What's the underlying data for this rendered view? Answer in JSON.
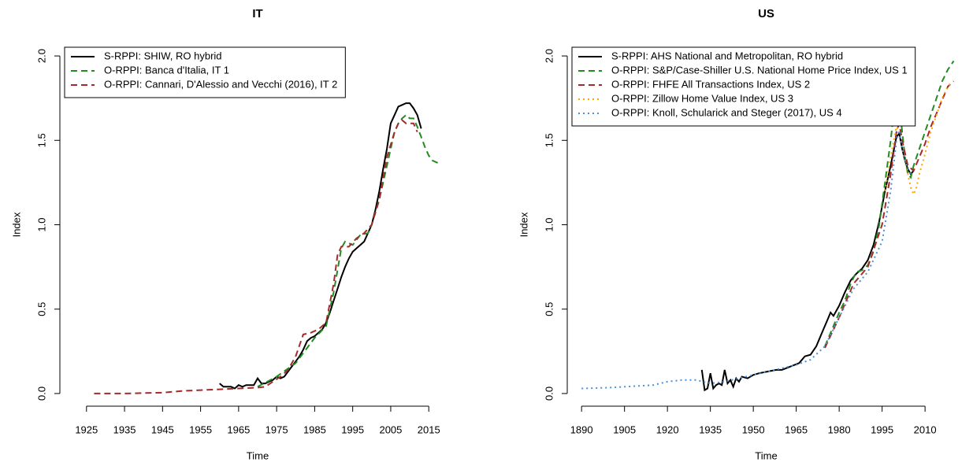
{
  "chart_data": [
    {
      "type": "line",
      "title": "IT",
      "xlabel": "Time",
      "ylabel": "Index",
      "xlim": [
        1918,
        2022
      ],
      "ylim": [
        -0.075,
        2.075
      ],
      "xticks": [
        1925,
        1935,
        1945,
        1955,
        1965,
        1975,
        1985,
        1995,
        2005,
        2015
      ],
      "yticks": [
        {
          "value": 0,
          "label": "0.0"
        },
        0.5,
        {
          "value": 1,
          "label": "1.0"
        },
        1.5,
        {
          "value": 2,
          "label": "2.0"
        }
      ],
      "legend": "topleft",
      "series": [
        {
          "name": "S-RPPI: SHIW, RO hybrid",
          "color": "#000000",
          "dash": "solid",
          "x": [
            1960,
            1961,
            1962,
            1963,
            1964,
            1965,
            1966,
            1967,
            1968,
            1969,
            1970,
            1971,
            1972,
            1973,
            1974,
            1975,
            1976,
            1977,
            1978,
            1979,
            1980,
            1981,
            1982,
            1983,
            1984,
            1985,
            1986,
            1987,
            1988,
            1989,
            1990,
            1991,
            1992,
            1993,
            1994,
            1995,
            1996,
            1997,
            1998,
            1999,
            2000,
            2001,
            2002,
            2003,
            2004,
            2005,
            2006,
            2007,
            2008,
            2009,
            2010,
            2011,
            2012,
            2013
          ],
          "values": [
            0.06,
            0.04,
            0.04,
            0.04,
            0.03,
            0.05,
            0.04,
            0.05,
            0.05,
            0.05,
            0.09,
            0.06,
            0.06,
            0.07,
            0.08,
            0.1,
            0.09,
            0.1,
            0.13,
            0.16,
            0.19,
            0.22,
            0.26,
            0.31,
            0.33,
            0.34,
            0.36,
            0.38,
            0.42,
            0.48,
            0.55,
            0.62,
            0.69,
            0.75,
            0.8,
            0.84,
            0.86,
            0.88,
            0.9,
            0.95,
            1.0,
            1.09,
            1.2,
            1.33,
            1.45,
            1.6,
            1.65,
            1.7,
            1.71,
            1.72,
            1.72,
            1.69,
            1.65,
            1.57
          ]
        },
        {
          "name": "O-RPPI: Banca d'Italia, IT 1",
          "color": "#228b22",
          "dash": "dashed",
          "x": [
            1970,
            1975,
            1980,
            1985,
            1988,
            1990,
            1992,
            1993,
            1995,
            1997,
            1999,
            2000,
            2002,
            2004,
            2005,
            2006,
            2007,
            2008,
            2009,
            2010,
            2011,
            2012,
            2013,
            2014,
            2015,
            2016,
            2017,
            2018
          ],
          "values": [
            0.04,
            0.1,
            0.18,
            0.33,
            0.4,
            0.6,
            0.86,
            0.9,
            0.88,
            0.94,
            0.95,
            1.0,
            1.15,
            1.35,
            1.45,
            1.55,
            1.6,
            1.63,
            1.65,
            1.63,
            1.63,
            1.58,
            1.52,
            1.46,
            1.41,
            1.38,
            1.37,
            1.36
          ]
        },
        {
          "name": "O-RPPI: Cannari, D'Alessio and Vecchi (2016), IT 2",
          "color": "#a52a2a",
          "dash": "dashed",
          "x": [
            1927,
            1935,
            1945,
            1950,
            1955,
            1960,
            1965,
            1970,
            1972,
            1974,
            1976,
            1978,
            1980,
            1982,
            1984,
            1986,
            1988,
            1990,
            1991,
            1992,
            1994,
            1996,
            1998,
            2000,
            2002,
            2004,
            2006,
            2007,
            2008,
            2009,
            2010,
            2011,
            2012
          ],
          "values": [
            0.0,
            0.0,
            0.005,
            0.015,
            0.02,
            0.025,
            0.03,
            0.035,
            0.04,
            0.07,
            0.1,
            0.14,
            0.22,
            0.35,
            0.36,
            0.38,
            0.42,
            0.65,
            0.82,
            0.87,
            0.87,
            0.92,
            0.95,
            1.0,
            1.15,
            1.4,
            1.55,
            1.6,
            1.62,
            1.6,
            1.6,
            1.6,
            1.55
          ]
        }
      ]
    },
    {
      "type": "line",
      "title": "US",
      "xlabel": "Time",
      "ylabel": "Index",
      "xlim": [
        1885,
        2024
      ],
      "ylim": [
        -0.075,
        2.075
      ],
      "xticks": [
        1890,
        1905,
        1920,
        1935,
        1950,
        1965,
        1980,
        1995,
        2010
      ],
      "yticks": [
        {
          "value": 0,
          "label": "0.0"
        },
        0.5,
        {
          "value": 1,
          "label": "1.0"
        },
        1.5,
        {
          "value": 2,
          "label": "2.0"
        }
      ],
      "legend": "topleft",
      "series": [
        {
          "name": "S-RPPI: AHS National and Metropolitan, RO hybrid",
          "color": "#000000",
          "dash": "solid",
          "x": [
            1932,
            1933,
            1934,
            1935,
            1936,
            1937,
            1938,
            1939,
            1940,
            1941,
            1942,
            1943,
            1944,
            1945,
            1946,
            1948,
            1950,
            1952,
            1955,
            1958,
            1960,
            1963,
            1966,
            1968,
            1970,
            1972,
            1974,
            1976,
            1977,
            1978,
            1980,
            1982,
            1984,
            1986,
            1988,
            1990,
            1992,
            1994,
            1996,
            1998,
            2000,
            2001,
            2002,
            2003,
            2004,
            2005,
            2006
          ],
          "values": [
            0.14,
            0.02,
            0.03,
            0.12,
            0.03,
            0.05,
            0.06,
            0.05,
            0.14,
            0.06,
            0.08,
            0.04,
            0.09,
            0.07,
            0.1,
            0.09,
            0.11,
            0.12,
            0.13,
            0.14,
            0.14,
            0.16,
            0.18,
            0.22,
            0.23,
            0.28,
            0.36,
            0.44,
            0.48,
            0.46,
            0.52,
            0.6,
            0.67,
            0.71,
            0.74,
            0.79,
            0.88,
            1.02,
            1.2,
            1.35,
            1.52,
            1.54,
            1.45,
            1.38,
            1.33,
            1.3,
            1.32
          ]
        },
        {
          "name": "O-RPPI: S&P/Case-Shiller U.S. National Home Price Index, US 1",
          "color": "#228b22",
          "dash": "dashed",
          "x": [
            1975,
            1978,
            1980,
            1982,
            1984,
            1986,
            1988,
            1990,
            1992,
            1994,
            1996,
            1998,
            1999,
            2000,
            2001,
            2002,
            2003,
            2004,
            2005,
            2006,
            2008,
            2010,
            2012,
            2014,
            2016,
            2018,
            2020
          ],
          "values": [
            0.28,
            0.4,
            0.48,
            0.55,
            0.65,
            0.72,
            0.73,
            0.76,
            0.84,
            1.0,
            1.25,
            1.5,
            1.65,
            1.76,
            1.73,
            1.55,
            1.4,
            1.3,
            1.28,
            1.35,
            1.45,
            1.55,
            1.65,
            1.75,
            1.85,
            1.92,
            1.97
          ]
        },
        {
          "name": "O-RPPI: FHFE All Transactions Index, US 2",
          "color": "#a52a2a",
          "dash": "dashed",
          "x": [
            1975,
            1980,
            1985,
            1990,
            1995,
            1998,
            2000,
            2001,
            2002,
            2004,
            2006,
            2008,
            2010,
            2012,
            2014,
            2016,
            2018,
            2020
          ],
          "values": [
            0.27,
            0.45,
            0.65,
            0.75,
            1.0,
            1.3,
            1.55,
            1.6,
            1.5,
            1.35,
            1.32,
            1.4,
            1.48,
            1.58,
            1.66,
            1.74,
            1.82,
            1.85
          ]
        },
        {
          "name": "O-RPPI: Zillow Home Value Index, US 3",
          "color": "#ffa500",
          "dash": "dotted",
          "x": [
            1996,
            1998,
            2000,
            2001,
            2002,
            2004,
            2005,
            2006,
            2007,
            2008,
            2010,
            2012,
            2014,
            2016,
            2018,
            2019
          ],
          "values": [
            1.2,
            1.4,
            1.58,
            1.55,
            1.45,
            1.3,
            1.22,
            1.18,
            1.22,
            1.3,
            1.42,
            1.55,
            1.65,
            1.75,
            1.82,
            1.84
          ]
        },
        {
          "name": "O-RPPI: Knoll, Schularick and Steger (2017), US 4",
          "color": "#4a90d9",
          "dash": "dotted",
          "x": [
            1890,
            1900,
            1905,
            1910,
            1915,
            1920,
            1925,
            1930,
            1935,
            1940,
            1945,
            1950,
            1955,
            1960,
            1965,
            1970,
            1975,
            1980,
            1985,
            1990,
            1995,
            1998,
            2000,
            2001,
            2002,
            2004,
            2005
          ],
          "values": [
            0.03,
            0.035,
            0.04,
            0.045,
            0.05,
            0.07,
            0.08,
            0.08,
            0.06,
            0.07,
            0.09,
            0.11,
            0.13,
            0.15,
            0.17,
            0.2,
            0.28,
            0.45,
            0.62,
            0.72,
            0.9,
            1.2,
            1.5,
            1.56,
            1.45,
            1.32,
            1.3
          ]
        }
      ]
    }
  ]
}
